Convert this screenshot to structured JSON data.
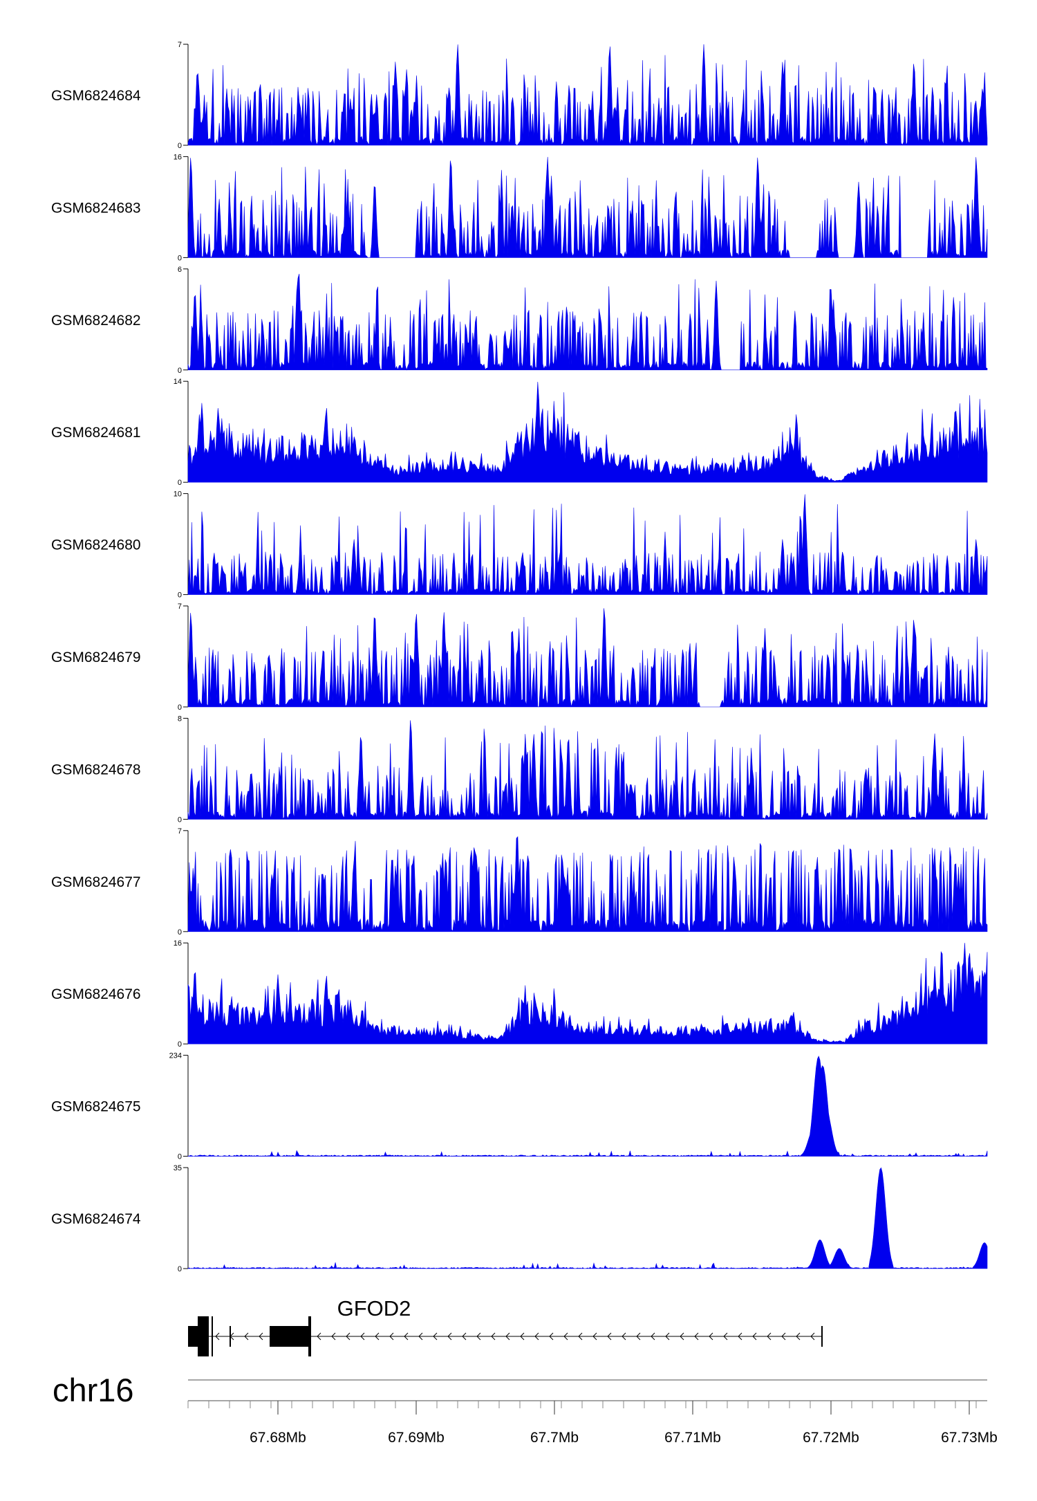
{
  "chart_data": {
    "type": "area",
    "chromosome": "chr16",
    "xlim": [
      67.6735,
      67.7313
    ],
    "x_ticks": [
      {
        "value": 67.68,
        "label": "67.68Mb"
      },
      {
        "value": 67.69,
        "label": "67.69Mb"
      },
      {
        "value": 67.7,
        "label": "67.7Mb"
      },
      {
        "value": 67.71,
        "label": "67.71Mb"
      },
      {
        "value": 67.72,
        "label": "67.72Mb"
      },
      {
        "value": 67.73,
        "label": "67.73Mb"
      }
    ],
    "color": "#0000ee",
    "grid": false,
    "series": [
      {
        "name": "GSM6824684",
        "ymin": "0",
        "ymax": "7",
        "ylim": [
          0,
          7
        ],
        "profile": "sparse",
        "seed": 11,
        "peaks": [
          [
            67.693,
            7
          ],
          [
            67.704,
            7
          ],
          [
            67.7108,
            7
          ],
          [
            67.6885,
            5.8
          ],
          [
            67.7165,
            5.8
          ],
          [
            67.726,
            5.8
          ]
        ],
        "gaps": []
      },
      {
        "name": "GSM6824683",
        "ymin": "0",
        "ymax": "16",
        "ylim": [
          0,
          16
        ],
        "profile": "sparse",
        "seed": 23,
        "peaks": [
          [
            67.6737,
            16
          ],
          [
            67.6925,
            16
          ],
          [
            67.6995,
            16
          ],
          [
            67.7147,
            16
          ],
          [
            67.7305,
            16
          ],
          [
            67.687,
            12
          ],
          [
            67.722,
            12
          ]
        ],
        "gaps": [
          [
            67.6865,
            67.69
          ],
          [
            67.717,
            67.719
          ],
          [
            67.7205,
            67.7225
          ],
          [
            67.725,
            67.727
          ]
        ]
      },
      {
        "name": "GSM6824682",
        "ymin": "0",
        "ymax": "6",
        "ylim": [
          0,
          6
        ],
        "profile": "sparse",
        "seed": 37,
        "peaks": [
          [
            67.674,
            4.7
          ],
          [
            67.6815,
            6
          ],
          [
            67.7117,
            5.3
          ],
          [
            67.72,
            4.8
          ]
        ],
        "gaps": [
          [
            67.7118,
            67.7135
          ]
        ]
      },
      {
        "name": "GSM6824681",
        "ymin": "0",
        "ymax": "14",
        "ylim": [
          0,
          14
        ],
        "profile": "dense",
        "seed": 41,
        "peaks": [
          [
            67.6988,
            14
          ],
          [
            67.6745,
            11
          ],
          [
            67.6835,
            10.5
          ],
          [
            67.7175,
            9.5
          ],
          [
            67.729,
            10.5
          ]
        ],
        "gaps": [],
        "envelope": [
          [
            67.6735,
            4.5
          ],
          [
            67.676,
            7.5
          ],
          [
            67.679,
            5
          ],
          [
            67.682,
            6
          ],
          [
            67.685,
            7
          ],
          [
            67.688,
            2
          ],
          [
            67.692,
            3
          ],
          [
            67.696,
            2
          ],
          [
            67.699,
            9.5
          ],
          [
            67.701,
            7
          ],
          [
            67.704,
            3.5
          ],
          [
            67.708,
            2.5
          ],
          [
            67.711,
            2
          ],
          [
            67.715,
            3
          ],
          [
            67.717,
            5
          ],
          [
            67.719,
            1
          ],
          [
            67.7205,
            0.2
          ],
          [
            67.723,
            3
          ],
          [
            67.725,
            5
          ],
          [
            67.727,
            6
          ],
          [
            67.7313,
            7.5
          ]
        ]
      },
      {
        "name": "GSM6824680",
        "ymin": "0",
        "ymax": "10",
        "ylim": [
          0,
          10
        ],
        "profile": "sparse",
        "seed": 53,
        "peaks": [
          [
            67.7181,
            10
          ],
          [
            67.7165,
            5.5
          ],
          [
            67.7305,
            5.5
          ],
          [
            67.6855,
            5.5
          ]
        ],
        "gaps": [],
        "envelope": [
          [
            67.6735,
            2.5
          ],
          [
            67.7313,
            2.5
          ]
        ]
      },
      {
        "name": "GSM6824679",
        "ymin": "0",
        "ymax": "7",
        "ylim": [
          0,
          7
        ],
        "profile": "sparse",
        "seed": 61,
        "peaks": [
          [
            67.6737,
            6.6
          ],
          [
            67.687,
            6.6
          ],
          [
            67.69,
            6.6
          ],
          [
            67.692,
            6.6
          ],
          [
            67.7036,
            7
          ],
          [
            67.726,
            6.2
          ]
        ],
        "gaps": [
          [
            67.7105,
            67.712
          ]
        ]
      },
      {
        "name": "GSM6824678",
        "ymin": "0",
        "ymax": "8",
        "ylim": [
          0,
          8
        ],
        "profile": "sparse",
        "seed": 73,
        "peaks": [
          [
            67.6896,
            8
          ],
          [
            67.686,
            6.8
          ],
          [
            67.6985,
            6.8
          ],
          [
            67.7275,
            6.8
          ],
          [
            67.701,
            6.5
          ]
        ],
        "gaps": [],
        "envelope": [
          [
            67.6735,
            2.5
          ],
          [
            67.696,
            2.5
          ],
          [
            67.699,
            4.5
          ],
          [
            67.703,
            4.5
          ],
          [
            67.706,
            2.5
          ],
          [
            67.7313,
            2.5
          ]
        ]
      },
      {
        "name": "GSM6824677",
        "ymin": "0",
        "ymax": "7",
        "ylim": [
          0,
          7
        ],
        "profile": "sparse",
        "seed": 89,
        "peaks": [
          [
            67.6973,
            7
          ],
          [
            67.6855,
            5
          ],
          [
            67.713,
            5
          ],
          [
            67.719,
            5.2
          ],
          [
            67.729,
            5
          ]
        ],
        "gaps": [],
        "envelope": [
          [
            67.6735,
            3.5
          ],
          [
            67.7313,
            3.5
          ]
        ]
      },
      {
        "name": "GSM6824676",
        "ymin": "0",
        "ymax": "16",
        "ylim": [
          0,
          16
        ],
        "profile": "dense",
        "seed": 97,
        "peaks": [
          [
            67.674,
            12
          ],
          [
            67.68,
            11
          ],
          [
            67.6835,
            11
          ],
          [
            67.728,
            15.5
          ],
          [
            67.73,
            15
          ]
        ],
        "gaps": [],
        "envelope": [
          [
            67.6735,
            7
          ],
          [
            67.678,
            5
          ],
          [
            67.683,
            6
          ],
          [
            67.685,
            7
          ],
          [
            67.687,
            2.5
          ],
          [
            67.69,
            2.5
          ],
          [
            67.694,
            1.5
          ],
          [
            67.696,
            1
          ],
          [
            67.698,
            6
          ],
          [
            67.7,
            6
          ],
          [
            67.702,
            2.5
          ],
          [
            67.705,
            2.5
          ],
          [
            67.708,
            2.5
          ],
          [
            67.711,
            2.5
          ],
          [
            67.714,
            3
          ],
          [
            67.717,
            3.5
          ],
          [
            67.719,
            0.6
          ],
          [
            67.721,
            0.4
          ],
          [
            67.7225,
            3.5
          ],
          [
            67.725,
            5
          ],
          [
            67.727,
            8
          ],
          [
            67.729,
            11
          ],
          [
            67.7313,
            11
          ]
        ]
      },
      {
        "name": "GSM6824675",
        "ymin": "0",
        "ymax": "234",
        "ylim": [
          0,
          234
        ],
        "profile": "peak",
        "seed": 5,
        "peaks": [
          [
            67.7191,
            232
          ],
          [
            67.7194,
            210
          ],
          [
            67.7197,
            100
          ],
          [
            67.7187,
            60
          ]
        ],
        "gaps": []
      },
      {
        "name": "GSM6824674",
        "ymin": "0",
        "ymax": "35",
        "ylim": [
          0,
          35
        ],
        "profile": "peak",
        "seed": 7,
        "peaks": [
          [
            67.7236,
            35
          ],
          [
            67.7192,
            10
          ],
          [
            67.7206,
            7
          ],
          [
            67.7311,
            9
          ]
        ],
        "gaps": []
      }
    ],
    "gene": {
      "name": "GFOD2",
      "strand": "-",
      "start": 67.6735,
      "end": 67.7194,
      "exons": [
        [
          67.6735,
          67.6742
        ],
        [
          67.6742,
          67.675
        ],
        [
          67.6752,
          67.6753
        ],
        [
          67.6765,
          67.6766
        ],
        [
          67.6794,
          67.6822
        ],
        [
          67.6822,
          67.6824
        ],
        [
          67.7193,
          67.7194
        ]
      ]
    }
  }
}
